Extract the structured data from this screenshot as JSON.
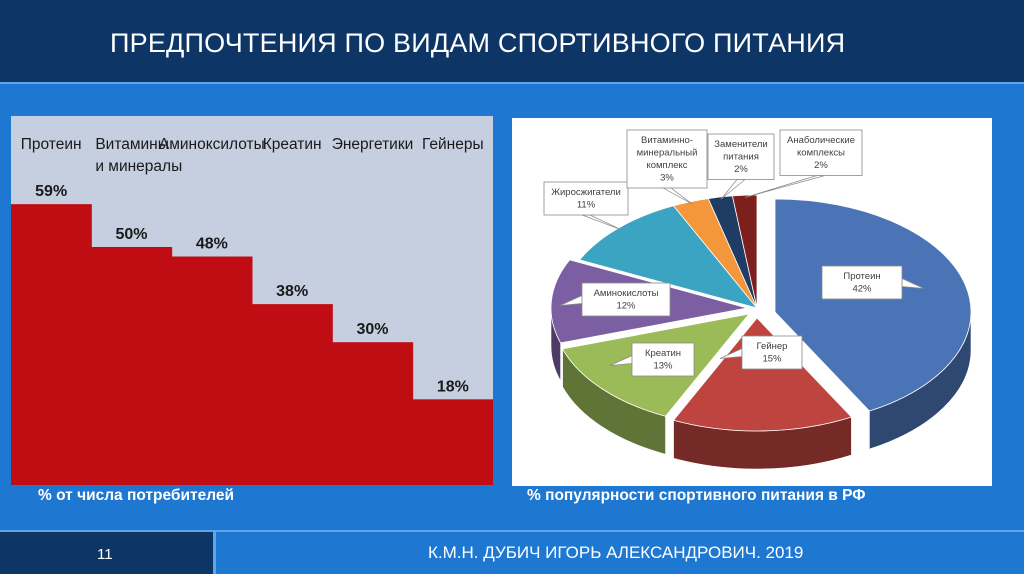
{
  "slide": {
    "title": "ПРЕДПОЧТЕНИЯ ПО ВИДАМ СПОРТИВНОГО ПИТАНИЯ",
    "left_caption": "% от числа потребителей",
    "right_caption": "% популярности спортивного питания в РФ",
    "page_number": "11",
    "author": "К.М.Н. ДУБИЧ ИГОРЬ АЛЕКСАНДРОВИЧ. 2019"
  },
  "colors": {
    "header": "#0d3566",
    "background": "#1e78d2",
    "step_fill": "#c00d14",
    "left_panel": "#c5cfdf"
  },
  "chart_data": [
    {
      "type": "bar",
      "categories": [
        "Протеин",
        "Витамины и минералы",
        "Аминоксилоты",
        "Креатин",
        "Энергетики",
        "Гейнеры"
      ],
      "category_lines": [
        [
          "Протеин"
        ],
        [
          "Витамины",
          "и минералы"
        ],
        [
          "Аминоксилоты"
        ],
        [
          "Креатин"
        ],
        [
          "Энергетики"
        ],
        [
          "Гейнеры"
        ]
      ],
      "values": [
        59,
        50,
        48,
        38,
        30,
        18
      ],
      "value_labels": [
        "59%",
        "50%",
        "48%",
        "38%",
        "30%",
        "18%"
      ],
      "ylim": [
        0,
        100
      ],
      "grid": false,
      "style": "step"
    },
    {
      "type": "pie",
      "style": "3d-exploded",
      "slices": [
        {
          "label": "Протеин",
          "value": 42,
          "color": "#4a74b6",
          "label_lines": [
            "Протеин",
            "42%"
          ]
        },
        {
          "label": "Гейнер",
          "value": 15,
          "color": "#be4440",
          "label_lines": [
            "Гейнер",
            "15%"
          ]
        },
        {
          "label": "Креатин",
          "value": 13,
          "color": "#9bbb59",
          "label_lines": [
            "Креатин",
            "13%"
          ]
        },
        {
          "label": "Аминокислоты",
          "value": 12,
          "color": "#7c5fa3",
          "label_lines": [
            "Аминокислоты",
            "12%"
          ]
        },
        {
          "label": "Жиросжигатели",
          "value": 11,
          "color": "#3ba4c2",
          "label_lines": [
            "Жиросжигатели",
            "11%"
          ]
        },
        {
          "label": "Витаминно-минеральный комплекс",
          "value": 3,
          "color": "#f3963c",
          "label_lines": [
            "Витаминно-",
            "минеральный",
            "комплекс",
            "3%"
          ]
        },
        {
          "label": "Заменители питания",
          "value": 2,
          "color": "#1f3c64",
          "label_lines": [
            "Заменители",
            "питания",
            "2%"
          ]
        },
        {
          "label": "Анаболические комплексы",
          "value": 2,
          "color": "#7d1f1c",
          "label_lines": [
            "Анаболические",
            "комплексы",
            "2%"
          ]
        }
      ]
    }
  ]
}
